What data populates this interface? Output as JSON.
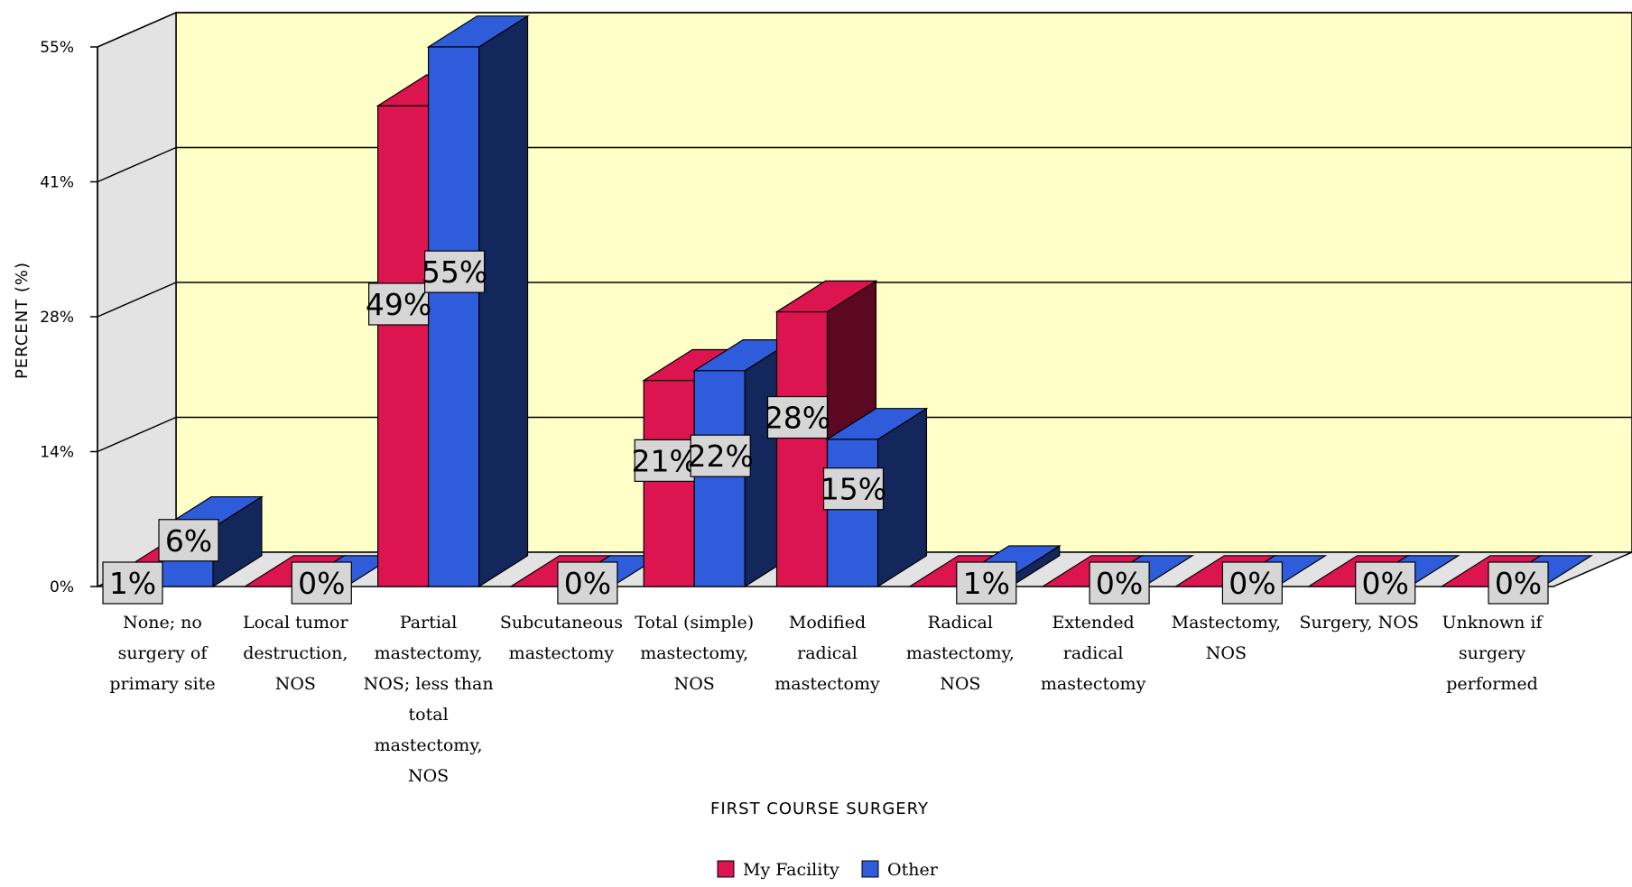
{
  "chart_data": {
    "type": "bar",
    "three_d": true,
    "title": "",
    "xlabel": "FIRST COURSE SURGERY",
    "ylabel": "PERCENT (%)",
    "ylim": [
      0,
      55
    ],
    "yticks": [
      "0%",
      "14%",
      "28%",
      "41%",
      "55%"
    ],
    "grid": true,
    "legend_position": "bottom",
    "categories": [
      "None; no surgery of primary site",
      "Local tumor destruction, NOS",
      "Partial mastectomy, NOS; less than total mastectomy, NOS",
      "Subcutaneous mastectomy",
      "Total (simple) mastectomy, NOS",
      "Modified radical mastectomy",
      "Radical mastectomy, NOS",
      "Extended radical mastectomy",
      "Mastectomy, NOS",
      "Surgery, NOS",
      "Unknown if surgery performed"
    ],
    "category_lines": [
      [
        "None; no",
        "surgery of",
        "primary site"
      ],
      [
        "Local tumor",
        "destruction,",
        "NOS"
      ],
      [
        "Partial",
        "mastectomy,",
        "NOS; less than",
        "total",
        "mastectomy,",
        "NOS"
      ],
      [
        "Subcutaneous",
        "mastectomy"
      ],
      [
        "Total (simple)",
        "mastectomy,",
        "NOS"
      ],
      [
        "Modified",
        "radical",
        "mastectomy"
      ],
      [
        "Radical",
        "mastectomy,",
        "NOS"
      ],
      [
        "Extended",
        "radical",
        "mastectomy"
      ],
      [
        "Mastectomy,",
        "NOS"
      ],
      [
        "Surgery, NOS"
      ],
      [
        "Unknown if",
        "surgery",
        "performed"
      ]
    ],
    "series": [
      {
        "name": "My Facility",
        "color": "#dc1450",
        "values": [
          1,
          0,
          49,
          0,
          21,
          28,
          0,
          0,
          0,
          0,
          0
        ],
        "labels": [
          "1%",
          "",
          "49%",
          "",
          "21%",
          "28%",
          "",
          "",
          "",
          "",
          ""
        ]
      },
      {
        "name": "Other",
        "color": "#2e5cdb",
        "values": [
          6,
          0,
          55,
          0,
          22,
          15,
          1,
          0,
          0,
          0,
          0
        ],
        "labels": [
          "6%",
          "0%",
          "55%",
          "0%",
          "22%",
          "15%",
          "1%",
          "0%",
          "0%",
          "0%",
          "0%"
        ]
      }
    ]
  }
}
